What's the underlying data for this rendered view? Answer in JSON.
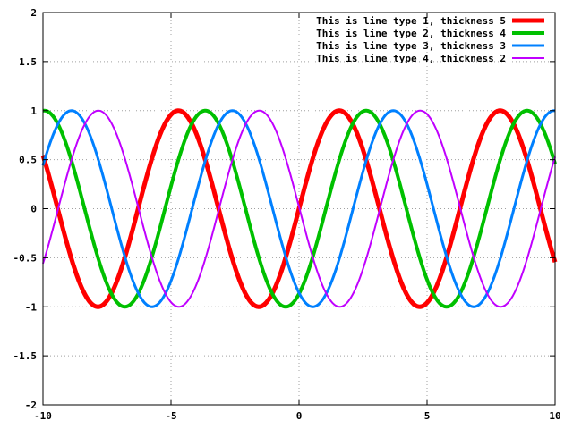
{
  "chart_data": {
    "type": "line",
    "title": "",
    "xlabel": "",
    "ylabel": "",
    "xlim": [
      -10,
      10
    ],
    "ylim": [
      -2,
      2
    ],
    "grid": true,
    "legend_placement": "top-right",
    "x_ticks": [
      -10,
      -5,
      0,
      5,
      10
    ],
    "x_tick_labels": [
      "-10",
      "-5",
      "0",
      "5",
      "10"
    ],
    "y_ticks": [
      -2,
      -1.5,
      -1,
      -0.5,
      0,
      0.5,
      1,
      1.5,
      2
    ],
    "y_tick_labels": [
      "-2",
      "-1.5",
      "-1",
      "-0.5",
      "0",
      "0.5",
      "1",
      "1.5",
      "2"
    ],
    "series": [
      {
        "name": "This is line type 1, thickness 5",
        "function": "sin(x)",
        "phase": 0,
        "color": "#ff0000",
        "thickness": 5
      },
      {
        "name": "This is line type 2, thickness 4",
        "function": "sin(x - 1.05)",
        "phase": 1.05,
        "color": "#00c000",
        "thickness": 4
      },
      {
        "name": "This is line type 3, thickness 3",
        "function": "sin(x - 2.11)",
        "phase": 2.11,
        "color": "#0080ff",
        "thickness": 3
      },
      {
        "name": "This is line type 4, thickness 2",
        "function": "sin(x - 3.16)",
        "phase": 3.16,
        "color": "#c000ff",
        "thickness": 2
      }
    ]
  }
}
